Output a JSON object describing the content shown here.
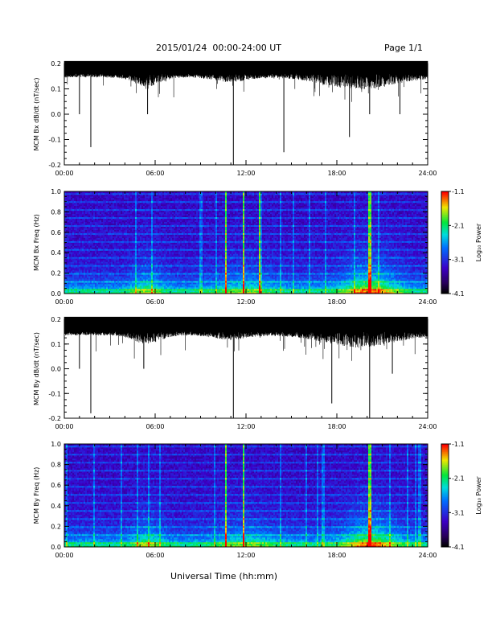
{
  "header": {
    "title": "2015/01/24  00:00-24:00 UT",
    "page": "Page 1/1",
    "xlabel": "Universal Time (hh:mm)"
  },
  "chart_data": [
    {
      "type": "line",
      "ylabel": "MCM Bx dB/dt (nT/sec)",
      "xlim": [
        "00:00",
        "24:00"
      ],
      "xticks": [
        "00:00",
        "06:00",
        "12:00",
        "18:00",
        "24:00"
      ],
      "ylim": [
        -0.2,
        0.2
      ],
      "yticks": [
        "-0.2",
        "-0.1",
        "0.0",
        "0.1",
        "0.2"
      ],
      "baseline": [
        0.16,
        0.2
      ],
      "spikes": [
        {
          "x": "01:00",
          "y": 0.0
        },
        {
          "x": "01:45",
          "y": -0.13
        },
        {
          "x": "05:30",
          "y": 0.0
        },
        {
          "x": "11:10",
          "y": -0.2
        },
        {
          "x": "14:30",
          "y": -0.15
        },
        {
          "x": "18:50",
          "y": -0.09
        },
        {
          "x": "20:10",
          "y": 0.0
        },
        {
          "x": "22:10",
          "y": 0.0
        }
      ]
    },
    {
      "type": "heatmap",
      "ylabel": "MCM Bx Freq (Hz)",
      "xlim": [
        "00:00",
        "24:00"
      ],
      "xticks": [
        "00:00",
        "06:00",
        "12:00",
        "18:00",
        "24:00"
      ],
      "ylim": [
        0.0,
        1.0
      ],
      "yticks": [
        "0.0",
        "0.2",
        "0.4",
        "0.6",
        "0.8",
        "1.0"
      ],
      "colorbar_label": "Log₁₀ Power",
      "colorbar_range": [
        -4.1,
        -1.1
      ],
      "colorbar_ticks": [
        "-1.1",
        "-2.1",
        "-3.1",
        "-4.1"
      ],
      "bright_times": [
        "10:40",
        "11:50",
        "12:55",
        "20:10"
      ]
    },
    {
      "type": "line",
      "ylabel": "MCM By dB/dt (nT/sec)",
      "xlim": [
        "00:00",
        "24:00"
      ],
      "xticks": [
        "00:00",
        "06:00",
        "12:00",
        "18:00",
        "24:00"
      ],
      "ylim": [
        -0.2,
        0.2
      ],
      "yticks": [
        "-0.2",
        "-0.1",
        "0.0",
        "0.1",
        "0.2"
      ],
      "baseline": [
        0.15,
        0.2
      ],
      "spikes": [
        {
          "x": "01:00",
          "y": 0.0
        },
        {
          "x": "01:45",
          "y": -0.18
        },
        {
          "x": "05:15",
          "y": 0.0
        },
        {
          "x": "11:10",
          "y": -0.2
        },
        {
          "x": "17:40",
          "y": -0.14
        },
        {
          "x": "20:10",
          "y": -0.2
        },
        {
          "x": "21:40",
          "y": -0.02
        }
      ]
    },
    {
      "type": "heatmap",
      "ylabel": "MCM By Freq (Hz)",
      "xlim": [
        "00:00",
        "24:00"
      ],
      "xticks": [
        "00:00",
        "06:00",
        "12:00",
        "18:00",
        "24:00"
      ],
      "ylim": [
        0.0,
        1.0
      ],
      "yticks": [
        "0.0",
        "0.2",
        "0.4",
        "0.6",
        "0.8",
        "1.0"
      ],
      "colorbar_label": "Log₁₀ Power",
      "colorbar_range": [
        -4.1,
        -1.1
      ],
      "colorbar_ticks": [
        "-1.1",
        "-2.1",
        "-3.1",
        "-4.1"
      ],
      "bright_times": [
        "10:40",
        "11:50",
        "20:10"
      ]
    }
  ]
}
